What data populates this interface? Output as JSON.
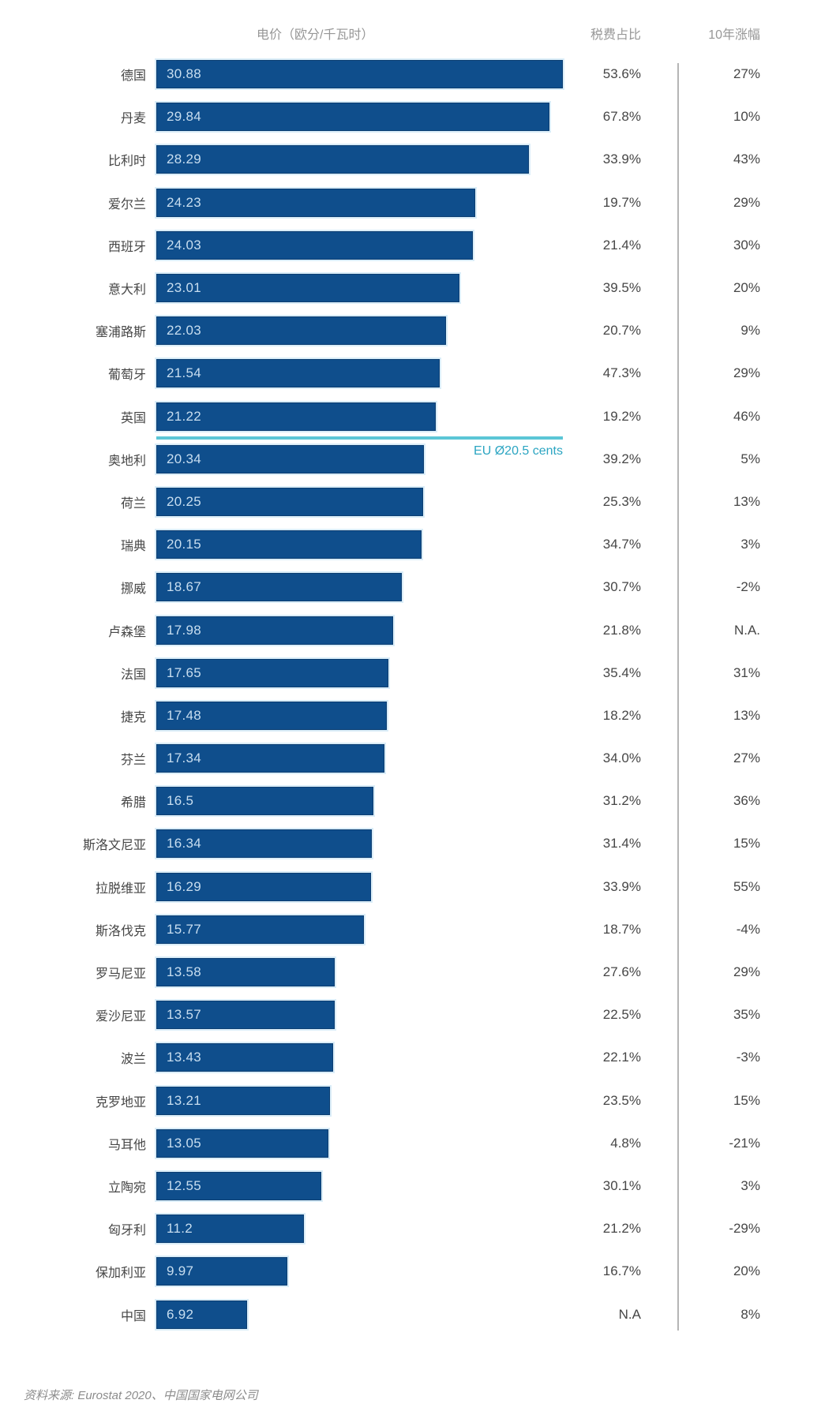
{
  "header": {
    "price_label": "电价（欧分/千瓦时）",
    "tax_label": "税费占比",
    "change_label": "10年涨幅"
  },
  "footer": {
    "source": "资料来源: Eurostat 2020、中国国家电网公司"
  },
  "colors": {
    "bar": "#0F4E8C",
    "bar_border": "#0C3E72",
    "bar_value_text": "#C8DEF0",
    "eu_line": "#5BC6D6",
    "eu_label_text": "#2CA5C2",
    "column_separator": "#B5B5B5"
  },
  "chart_data": {
    "type": "bar",
    "orientation": "horizontal",
    "title": "电价（欧分/千瓦时）",
    "columns": [
      "电价（欧分/千瓦时）",
      "税费占比",
      "10年涨幅"
    ],
    "xlim": [
      0,
      30.88
    ],
    "grid": false,
    "eu_average_line": {
      "label": "EU Ø20.5 cents",
      "value": 20.5,
      "position_after": "英国"
    },
    "rows": [
      {
        "country": "德国",
        "price": "30.88",
        "tax": "53.6%",
        "change": "27%"
      },
      {
        "country": "丹麦",
        "price": "29.84",
        "tax": "67.8%",
        "change": "10%"
      },
      {
        "country": "比利时",
        "price": "28.29",
        "tax": "33.9%",
        "change": "43%"
      },
      {
        "country": "爱尔兰",
        "price": "24.23",
        "tax": "19.7%",
        "change": "29%"
      },
      {
        "country": "西班牙",
        "price": "24.03",
        "tax": "21.4%",
        "change": "30%"
      },
      {
        "country": "意大利",
        "price": "23.01",
        "tax": "39.5%",
        "change": "20%"
      },
      {
        "country": "塞浦路斯",
        "price": "22.03",
        "tax": "20.7%",
        "change": "9%"
      },
      {
        "country": "葡萄牙",
        "price": "21.54",
        "tax": "47.3%",
        "change": "29%"
      },
      {
        "country": "英国",
        "price": "21.22",
        "tax": "19.2%",
        "change": "46%"
      },
      {
        "country": "奥地利",
        "price": "20.34",
        "tax": "39.2%",
        "change": "5%"
      },
      {
        "country": "荷兰",
        "price": "20.25",
        "tax": "25.3%",
        "change": "13%"
      },
      {
        "country": "瑞典",
        "price": "20.15",
        "tax": "34.7%",
        "change": "3%"
      },
      {
        "country": "挪威",
        "price": "18.67",
        "tax": "30.7%",
        "change": "-2%"
      },
      {
        "country": "卢森堡",
        "price": "17.98",
        "tax": "21.8%",
        "change": "N.A."
      },
      {
        "country": "法国",
        "price": "17.65",
        "tax": "35.4%",
        "change": "31%"
      },
      {
        "country": "捷克",
        "price": "17.48",
        "tax": "18.2%",
        "change": "13%"
      },
      {
        "country": "芬兰",
        "price": "17.34",
        "tax": "34.0%",
        "change": "27%"
      },
      {
        "country": "希腊",
        "price": "16.5",
        "tax": "31.2%",
        "change": "36%"
      },
      {
        "country": "斯洛文尼亚",
        "price": "16.34",
        "tax": "31.4%",
        "change": "15%"
      },
      {
        "country": "拉脱维亚",
        "price": "16.29",
        "tax": "33.9%",
        "change": "55%"
      },
      {
        "country": "斯洛伐克",
        "price": "15.77",
        "tax": "18.7%",
        "change": "-4%"
      },
      {
        "country": "罗马尼亚",
        "price": "13.58",
        "tax": "27.6%",
        "change": "29%"
      },
      {
        "country": "爱沙尼亚",
        "price": "13.57",
        "tax": "22.5%",
        "change": "35%"
      },
      {
        "country": "波兰",
        "price": "13.43",
        "tax": "22.1%",
        "change": "-3%"
      },
      {
        "country": "克罗地亚",
        "price": "13.21",
        "tax": "23.5%",
        "change": "15%"
      },
      {
        "country": "马耳他",
        "price": "13.05",
        "tax": "4.8%",
        "change": "-21%"
      },
      {
        "country": "立陶宛",
        "price": "12.55",
        "tax": "30.1%",
        "change": "3%"
      },
      {
        "country": "匈牙利",
        "price": "11.2",
        "tax": "21.2%",
        "change": "-29%"
      },
      {
        "country": "保加利亚",
        "price": "9.97",
        "tax": "16.7%",
        "change": "20%"
      },
      {
        "country": "中国",
        "price": "6.92",
        "tax": "N.A",
        "change": "8%"
      }
    ]
  }
}
